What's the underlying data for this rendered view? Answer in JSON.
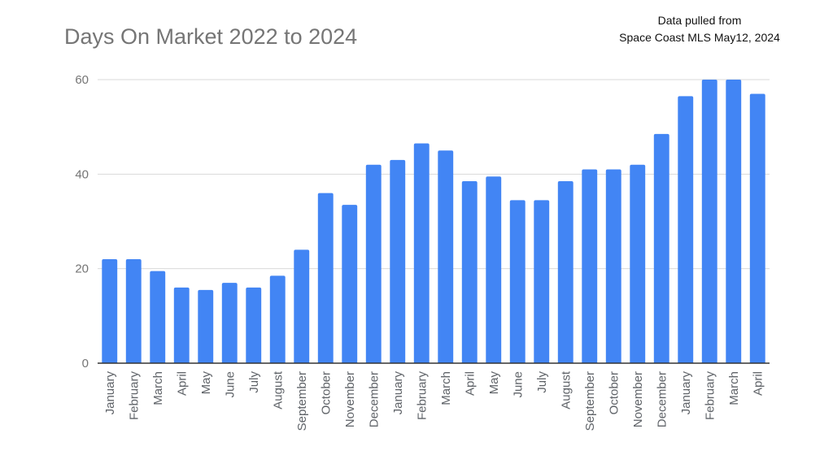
{
  "chart_data": {
    "type": "bar",
    "title": "Days On Market 2022 to 2024",
    "annotation": [
      "Data pulled from",
      "Space Coast MLS May12, 2024"
    ],
    "xlabel": "",
    "ylabel": "",
    "ylim": [
      0,
      60
    ],
    "yticks": [
      0,
      20,
      40,
      60
    ],
    "grid": true,
    "legend": "none",
    "bar_color": "#4285F4",
    "categories": [
      "January",
      "February",
      "March",
      "April",
      "May",
      "June",
      "July",
      "August",
      "September",
      "October",
      "November",
      "December",
      "January",
      "February",
      "March",
      "April",
      "May",
      "June",
      "July",
      "August",
      "September",
      "October",
      "November",
      "December",
      "January",
      "February",
      "March",
      "April"
    ],
    "values": [
      22,
      22,
      19.5,
      16,
      15.5,
      17,
      16,
      18.5,
      24,
      36,
      33.5,
      42,
      43,
      46.5,
      45,
      38.5,
      39.5,
      34.5,
      34.5,
      38.5,
      41,
      41,
      42,
      48.5,
      56.5,
      60,
      60,
      57
    ]
  }
}
